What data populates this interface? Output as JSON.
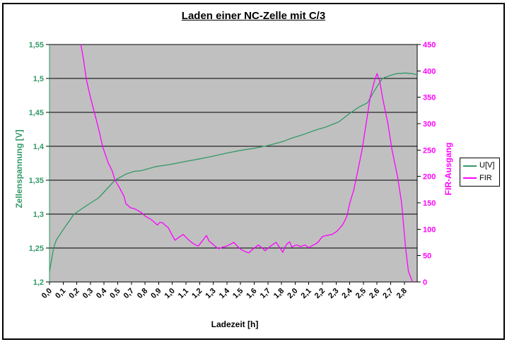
{
  "title": "Laden einer NC-Zelle mit C/3",
  "colors": {
    "voltage_green": "#339966",
    "fir_magenta": "#FF00FF",
    "plot_background": "#C0C0C0",
    "grid": "#000000"
  },
  "legend": {
    "items": [
      {
        "label": "U[V]",
        "color": "#339966"
      },
      {
        "label": "FIR",
        "color": "#FF00FF"
      }
    ]
  },
  "chart_data": {
    "type": "line",
    "title": "Laden einer NC-Zelle mit C/3",
    "xlabel": "Ladezeit [h]",
    "ylabel_left": "Zellenspannung [V]",
    "ylabel_right": "FIR-Ausgang",
    "grid": "horizontal",
    "legend_position": "right",
    "plot_bg": "#C0C0C0",
    "x_axis": {
      "label": "Ladezeit [h]",
      "tick_labels": [
        "0,0",
        "0,1",
        "0,2",
        "0,3",
        "0,4",
        "0,5",
        "0,7",
        "0,8",
        "0,9",
        "1,0",
        "1,1",
        "1,2",
        "1,3",
        "1,4",
        "1,5",
        "1,6",
        "1,7",
        "1,8",
        "2,0",
        "2,1",
        "2,2",
        "2,3",
        "2,4",
        "2,5",
        "2,6",
        "2,7",
        "2,8"
      ],
      "note": "category axis, labels 0,6 and 1,9 absent"
    },
    "y_axis_left": {
      "label": "Zellenspannung [V]",
      "color": "#339966",
      "min": 1.2,
      "max": 1.55,
      "tick_labels": [
        "1,2",
        "1,25",
        "1,3",
        "1,35",
        "1,4",
        "1,45",
        "1,5",
        "1,55"
      ]
    },
    "y_axis_right": {
      "label": "FIR-Ausgang",
      "color": "#FF00FF",
      "min": 0,
      "max": 450,
      "tick_labels": [
        "0",
        "50",
        "100",
        "150",
        "200",
        "250",
        "300",
        "350",
        "400",
        "450"
      ]
    },
    "series": [
      {
        "name": "U[V]",
        "axis": "left",
        "color": "#339966",
        "points": [
          [
            0.0,
            1.215
          ],
          [
            0.03,
            1.25
          ],
          [
            0.05,
            1.262
          ],
          [
            0.1,
            1.277
          ],
          [
            0.18,
            1.3
          ],
          [
            0.26,
            1.311
          ],
          [
            0.36,
            1.324
          ],
          [
            0.48,
            1.35
          ],
          [
            0.55,
            1.355
          ],
          [
            0.62,
            1.359
          ],
          [
            0.72,
            1.363
          ],
          [
            0.77,
            1.364
          ],
          [
            0.88,
            1.37
          ],
          [
            0.98,
            1.373
          ],
          [
            1.08,
            1.377
          ],
          [
            1.19,
            1.381
          ],
          [
            1.29,
            1.385
          ],
          [
            1.4,
            1.39
          ],
          [
            1.5,
            1.394
          ],
          [
            1.6,
            1.397
          ],
          [
            1.7,
            1.401
          ],
          [
            1.82,
            1.407
          ],
          [
            1.95,
            1.412
          ],
          [
            2.07,
            1.418
          ],
          [
            2.15,
            1.424
          ],
          [
            2.22,
            1.428
          ],
          [
            2.32,
            1.436
          ],
          [
            2.41,
            1.45
          ],
          [
            2.47,
            1.458
          ],
          [
            2.53,
            1.464
          ],
          [
            2.57,
            1.478
          ],
          [
            2.6,
            1.488
          ],
          [
            2.64,
            1.5
          ],
          [
            2.69,
            1.504
          ],
          [
            2.74,
            1.507
          ],
          [
            2.81,
            1.508
          ],
          [
            2.86,
            1.507
          ],
          [
            2.9,
            1.505
          ]
        ]
      },
      {
        "name": "FIR",
        "axis": "right",
        "color": "#FF00FF",
        "points": [
          [
            0.23,
            450
          ],
          [
            0.25,
            420
          ],
          [
            0.27,
            384
          ],
          [
            0.3,
            350
          ],
          [
            0.33,
            320
          ],
          [
            0.36,
            290
          ],
          [
            0.39,
            256
          ],
          [
            0.43,
            226
          ],
          [
            0.46,
            210
          ],
          [
            0.48,
            193
          ],
          [
            0.52,
            180
          ],
          [
            0.56,
            170
          ],
          [
            0.59,
            163
          ],
          [
            0.62,
            148
          ],
          [
            0.65,
            145
          ],
          [
            0.68,
            141
          ],
          [
            0.72,
            139
          ],
          [
            0.75,
            135
          ],
          [
            0.77,
            132
          ],
          [
            0.8,
            125
          ],
          [
            0.84,
            119
          ],
          [
            0.86,
            115
          ],
          [
            0.89,
            108
          ],
          [
            0.91,
            113
          ],
          [
            0.93,
            112
          ],
          [
            0.95,
            107
          ],
          [
            0.97,
            103
          ],
          [
            1.0,
            88
          ],
          [
            1.02,
            79
          ],
          [
            1.05,
            85
          ],
          [
            1.08,
            90
          ],
          [
            1.11,
            82
          ],
          [
            1.14,
            75
          ],
          [
            1.17,
            70
          ],
          [
            1.19,
            68
          ],
          [
            1.22,
            78
          ],
          [
            1.25,
            88
          ],
          [
            1.27,
            77
          ],
          [
            1.29,
            73
          ],
          [
            1.32,
            66
          ],
          [
            1.34,
            63
          ],
          [
            1.37,
            66
          ],
          [
            1.4,
            68
          ],
          [
            1.43,
            72
          ],
          [
            1.45,
            75
          ],
          [
            1.48,
            67
          ],
          [
            1.5,
            62
          ],
          [
            1.53,
            58
          ],
          [
            1.56,
            55
          ],
          [
            1.59,
            62
          ],
          [
            1.63,
            70
          ],
          [
            1.66,
            64
          ],
          [
            1.68,
            59
          ],
          [
            1.72,
            68
          ],
          [
            1.76,
            75
          ],
          [
            1.79,
            64
          ],
          [
            1.82,
            56
          ],
          [
            1.85,
            66
          ],
          [
            1.88,
            72
          ],
          [
            1.92,
            76
          ],
          [
            1.95,
            66
          ],
          [
            1.98,
            68
          ],
          [
            2.01,
            70
          ],
          [
            2.04,
            67
          ],
          [
            2.07,
            70
          ],
          [
            2.1,
            65
          ],
          [
            2.12,
            68
          ],
          [
            2.15,
            72
          ],
          [
            2.17,
            76
          ],
          [
            2.2,
            86
          ],
          [
            2.23,
            88
          ],
          [
            2.27,
            90
          ],
          [
            2.3,
            95
          ],
          [
            2.32,
            100
          ],
          [
            2.35,
            109
          ],
          [
            2.38,
            125
          ],
          [
            2.4,
            149
          ],
          [
            2.43,
            175
          ],
          [
            2.45,
            200
          ],
          [
            2.49,
            250
          ],
          [
            2.52,
            300
          ],
          [
            2.55,
            350
          ],
          [
            2.58,
            380
          ],
          [
            2.6,
            395
          ],
          [
            2.62,
            380
          ],
          [
            2.64,
            350
          ],
          [
            2.68,
            300
          ],
          [
            2.71,
            250
          ],
          [
            2.75,
            200
          ],
          [
            2.78,
            150
          ],
          [
            2.81,
            63
          ],
          [
            2.83,
            20
          ],
          [
            2.86,
            0
          ]
        ]
      }
    ]
  }
}
